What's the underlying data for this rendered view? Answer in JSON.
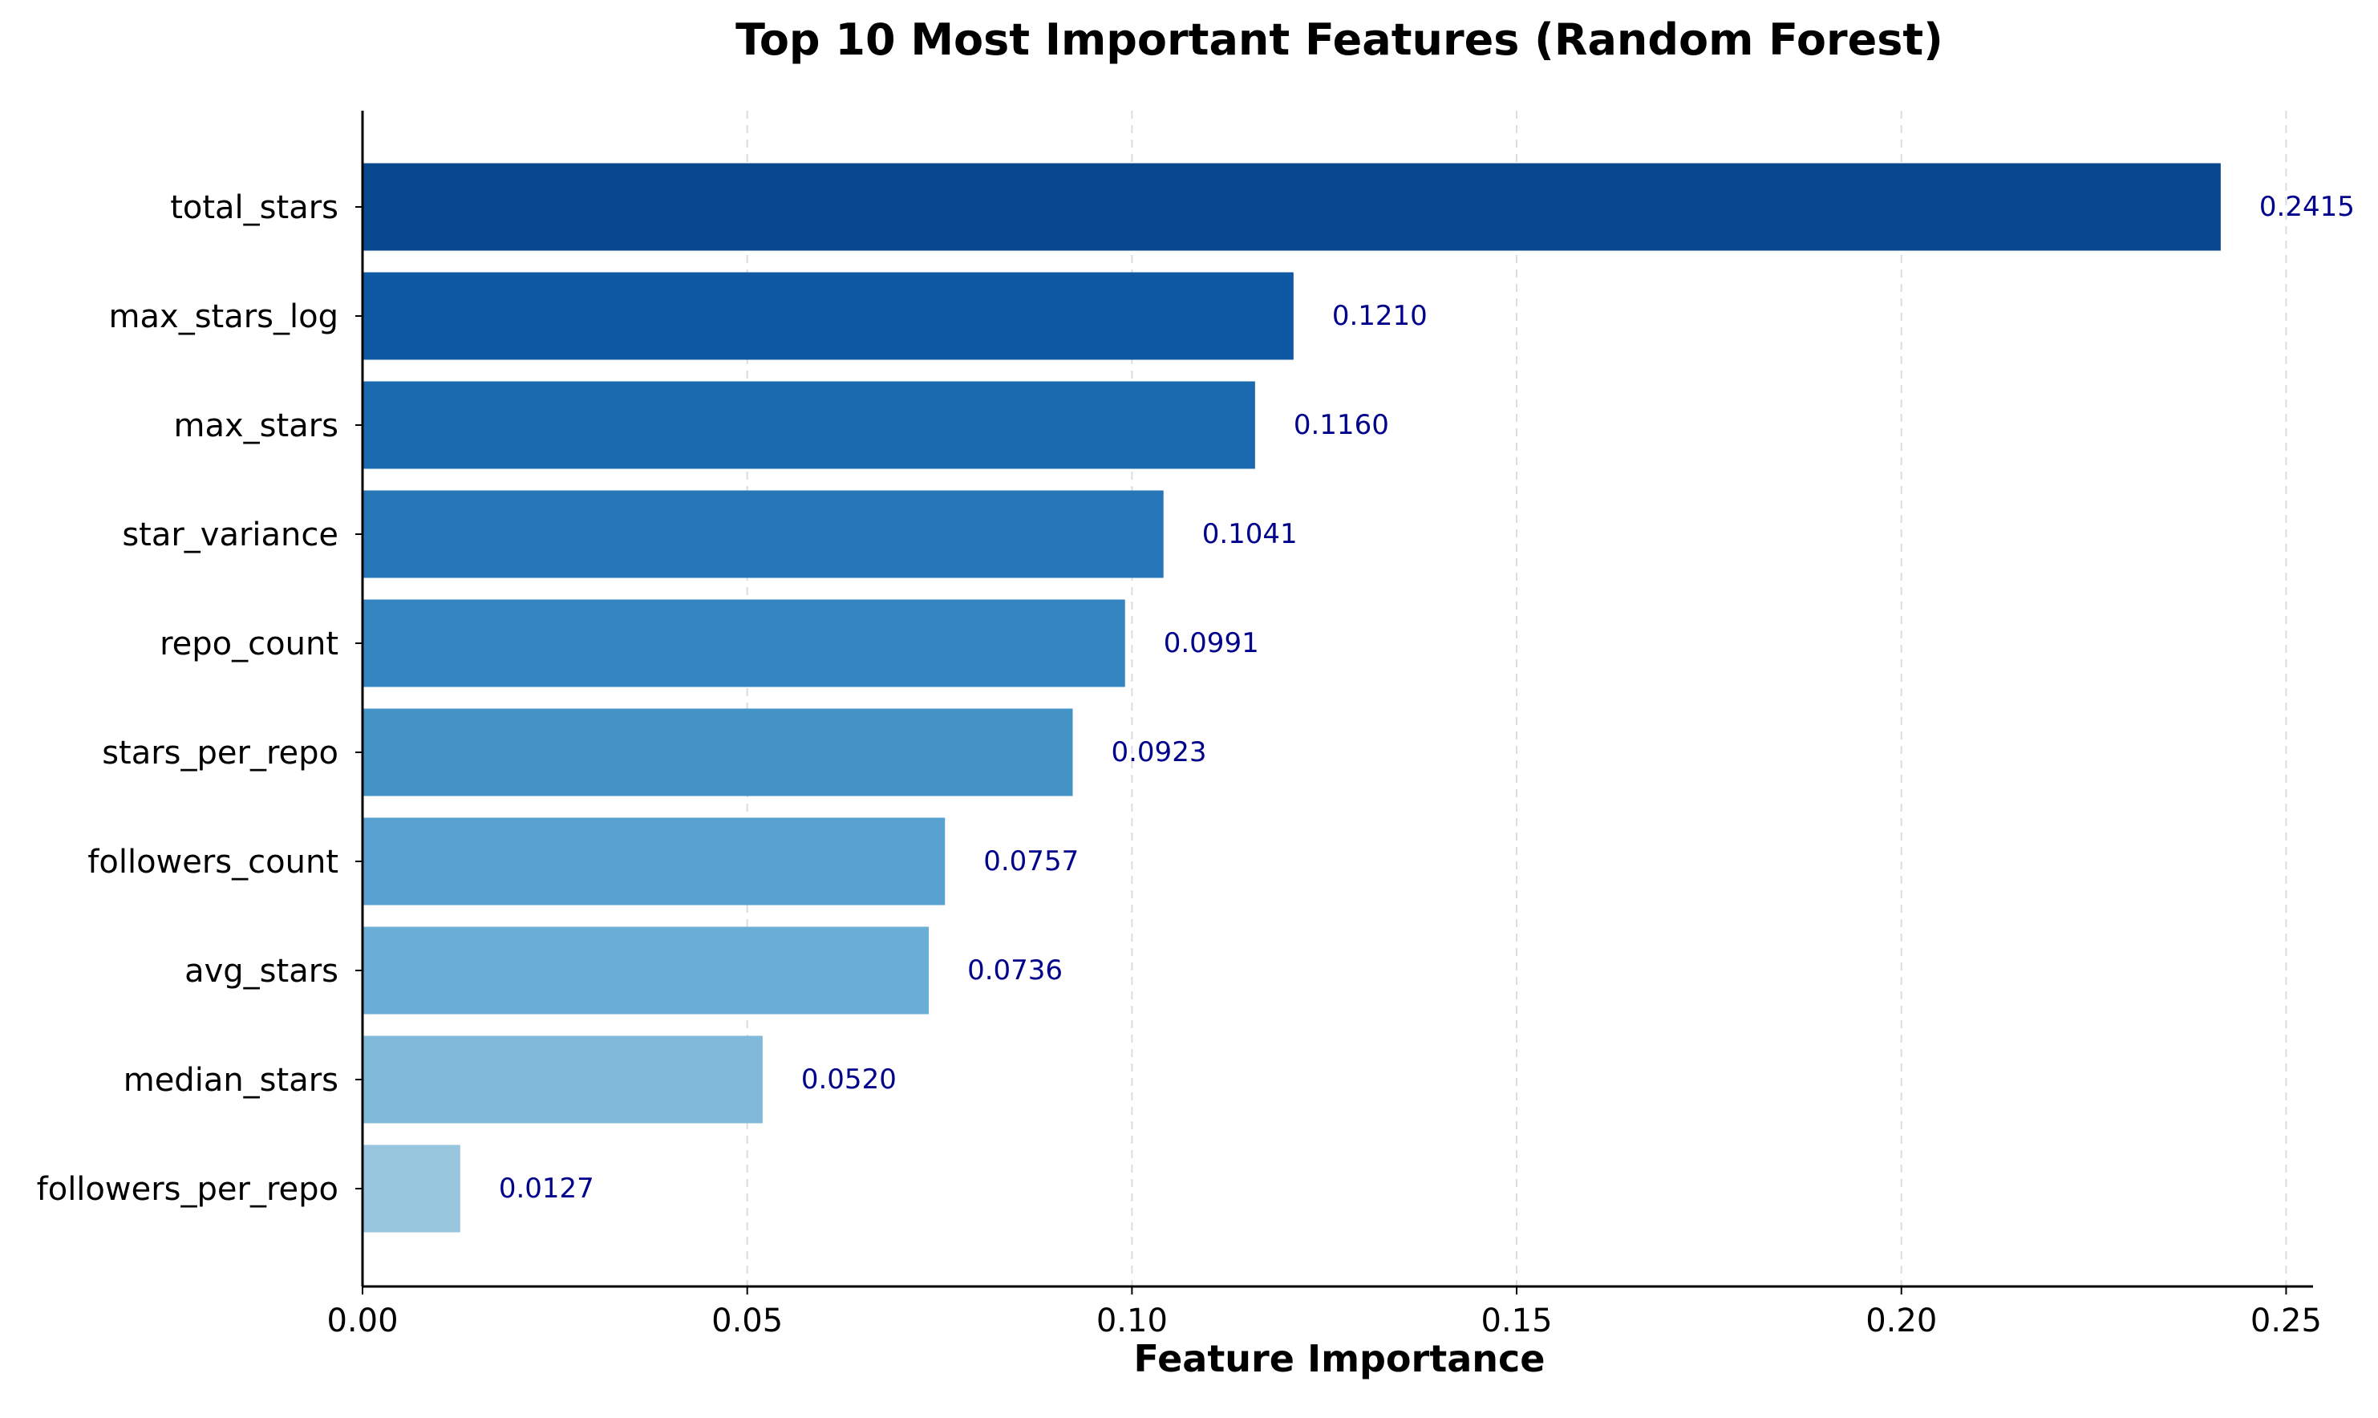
{
  "chart_data": {
    "type": "bar",
    "orientation": "horizontal",
    "title": "Top 10 Most Important Features (Random Forest)",
    "xlabel": "Feature Importance",
    "ylabel": "",
    "categories": [
      "total_stars",
      "max_stars_log",
      "max_stars",
      "star_variance",
      "repo_count",
      "stars_per_repo",
      "followers_count",
      "avg_stars",
      "median_stars",
      "followers_per_repo"
    ],
    "values": [
      0.2415,
      0.121,
      0.116,
      0.1041,
      0.0991,
      0.0923,
      0.0757,
      0.0736,
      0.052,
      0.0127
    ],
    "value_labels": [
      "0.2415",
      "0.1210",
      "0.1160",
      "0.1041",
      "0.0991",
      "0.0923",
      "0.0757",
      "0.0736",
      "0.0520",
      "0.0127"
    ],
    "bar_colors": [
      "#08488e",
      "#0f58a3",
      "#1b69af",
      "#2676b8",
      "#3585c0",
      "#4393c7",
      "#57a0cf",
      "#6aaed6",
      "#80b9da",
      "#98c6df"
    ],
    "value_label_color": "#00008b",
    "xlim": [
      0,
      0.2535
    ],
    "xticks": [
      0.0,
      0.05,
      0.1,
      0.15,
      0.2,
      0.25
    ],
    "xtick_labels": [
      "0.00",
      "0.05",
      "0.10",
      "0.15",
      "0.20",
      "0.25"
    ],
    "grid": "x-dashed",
    "legend": "none"
  }
}
